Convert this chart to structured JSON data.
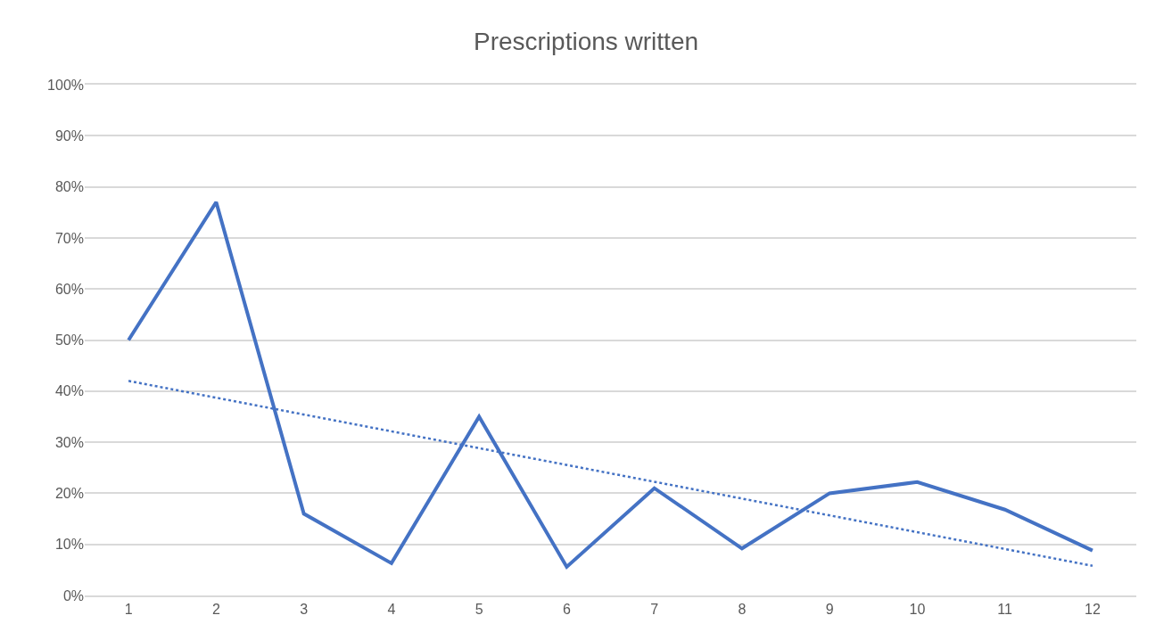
{
  "chart_data": {
    "type": "line",
    "title": "Prescriptions written",
    "x": [
      1,
      2,
      3,
      4,
      5,
      6,
      7,
      8,
      9,
      10,
      11,
      12
    ],
    "series": [
      {
        "color": "#4472c4",
        "values": [
          50,
          77,
          16,
          6.3,
          35,
          5.6,
          21,
          9.2,
          20,
          22.2,
          16.8,
          8.8
        ],
        "line_style": "solid"
      },
      {
        "color": "#4472c4",
        "x": [
          1,
          12
        ],
        "values": [
          42,
          5.8
        ],
        "line_style": "dotted"
      }
    ],
    "xlim": [
      0.5,
      12.5
    ],
    "xticks": [
      1,
      2,
      3,
      4,
      5,
      6,
      7,
      8,
      9,
      10,
      11,
      12
    ],
    "ylim": [
      0,
      100
    ],
    "yticks": [
      {
        "value": 0,
        "label": "0%"
      },
      {
        "value": 10,
        "label": "10%"
      },
      {
        "value": 20,
        "label": "20%"
      },
      {
        "value": 30,
        "label": "30%"
      },
      {
        "value": 40,
        "label": "40%"
      },
      {
        "value": 50,
        "label": "50%"
      },
      {
        "value": 60,
        "label": "60%"
      },
      {
        "value": 70,
        "label": "70%"
      },
      {
        "value": 80,
        "label": "80%"
      },
      {
        "value": 90,
        "label": "90%"
      },
      {
        "value": 100,
        "label": "100%"
      }
    ],
    "grid": "y",
    "marker": "none"
  }
}
